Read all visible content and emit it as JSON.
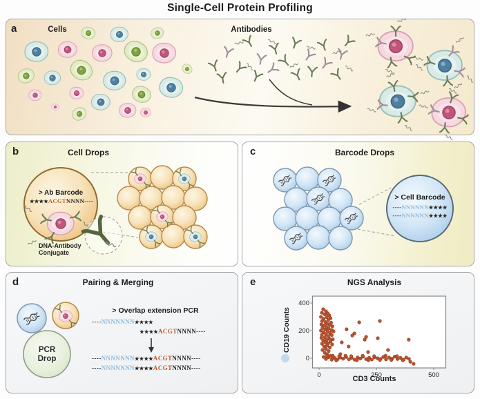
{
  "title": "Single-Cell Protein Profiling",
  "colors": {
    "seq_orange": "#c05a2a",
    "seq_blue": "#8fbcdd",
    "scatter_point": "#b9522e",
    "panel_border": "#a6a6a6",
    "orange_drop": "#f2cf96",
    "blue_drop": "#b8d4ec",
    "pcr_drop": "#dde9d3"
  },
  "icons": {
    "antibody-icon": "Y-shaped antibody glyph",
    "dna-squiggle-icon": "wavy DNA oligo tag",
    "dna-helix-icon": "double helix barcode",
    "droplet-icon": "microfluidic drop circle",
    "flow-arrow-icon": "right-pointing workflow arrow",
    "merge-arrow-icon": "downward merge arrow"
  },
  "panels": {
    "a": {
      "letter": "a",
      "cells_label": "Cells",
      "antibodies_label": "Antibodies"
    },
    "b": {
      "letter": "b",
      "title": "Cell Drops",
      "drop_header": "> Ab Barcode",
      "seq": [
        "★★★★",
        "ACGT",
        "NNNN",
        "----"
      ],
      "conjugate_label": [
        "DNA-Antibody",
        "Conjugate"
      ]
    },
    "c": {
      "letter": "c",
      "title": "Barcode Drops",
      "drop_header": "> Cell Barcode",
      "seq": [
        "----",
        "NNNNNN",
        "★★★★"
      ]
    },
    "d": {
      "letter": "d",
      "title": "Pairing & Merging",
      "pcr_drop": [
        "PCR",
        "Drop"
      ],
      "overlap_header": "> Overlap extension PCR",
      "seq_top": [
        "----",
        "NNNNNNN",
        "★★★★"
      ],
      "seq_mid": [
        "★★★★",
        "ACGT",
        "NNNN",
        "----"
      ],
      "seq_merged": [
        "----",
        "NNNNNNN",
        "★★★★",
        "ACGT",
        "NNNN",
        "----"
      ]
    },
    "e": {
      "letter": "e",
      "title": "NGS Analysis",
      "chart_data": {
        "type": "scatter",
        "xlabel": "CD3 Counts",
        "ylabel": "CD19 Counts",
        "xticks": [
          0,
          250,
          500
        ],
        "yticks": [
          0,
          200,
          400
        ],
        "xlim": [
          -30,
          545
        ],
        "ylim": [
          -70,
          450
        ],
        "legend": null,
        "grid": false,
        "points": [
          [
            18,
            355
          ],
          [
            30,
            340
          ],
          [
            12,
            330
          ],
          [
            38,
            325
          ],
          [
            25,
            318
          ],
          [
            45,
            310
          ],
          [
            8,
            300
          ],
          [
            33,
            298
          ],
          [
            50,
            290
          ],
          [
            20,
            285
          ],
          [
            40,
            278
          ],
          [
            13,
            270
          ],
          [
            28,
            262
          ],
          [
            52,
            258
          ],
          [
            36,
            250
          ],
          [
            10,
            245
          ],
          [
            46,
            240
          ],
          [
            22,
            238
          ],
          [
            58,
            232
          ],
          [
            32,
            225
          ],
          [
            15,
            220
          ],
          [
            42,
            215
          ],
          [
            27,
            208
          ],
          [
            55,
            205
          ],
          [
            8,
            200
          ],
          [
            38,
            195
          ],
          [
            63,
            195
          ],
          [
            20,
            188
          ],
          [
            48,
            182
          ],
          [
            30,
            175
          ],
          [
            12,
            170
          ],
          [
            55,
            168
          ],
          [
            40,
            160
          ],
          [
            25,
            152
          ],
          [
            10,
            148
          ],
          [
            45,
            142
          ],
          [
            60,
            138
          ],
          [
            33,
            132
          ],
          [
            18,
            128
          ],
          [
            50,
            122
          ],
          [
            28,
            115
          ],
          [
            40,
            108
          ],
          [
            13,
            105
          ],
          [
            57,
            100
          ],
          [
            35,
            92
          ],
          [
            22,
            85
          ],
          [
            47,
            78
          ],
          [
            30,
            68
          ],
          [
            15,
            60
          ],
          [
            42,
            52
          ],
          [
            25,
            40
          ],
          [
            35,
            28
          ],
          [
            50,
            18
          ],
          [
            20,
            10
          ],
          [
            60,
            5
          ],
          [
            30,
            -5
          ],
          [
            42,
            8
          ],
          [
            55,
            -10
          ],
          [
            68,
            2
          ],
          [
            80,
            -8
          ],
          [
            92,
            5
          ],
          [
            105,
            -3
          ],
          [
            118,
            10
          ],
          [
            130,
            -7
          ],
          [
            142,
            3
          ],
          [
            155,
            -10
          ],
          [
            168,
            6
          ],
          [
            180,
            -2
          ],
          [
            192,
            12
          ],
          [
            205,
            -6
          ],
          [
            218,
            4
          ],
          [
            230,
            -9
          ],
          [
            242,
            8
          ],
          [
            255,
            0
          ],
          [
            268,
            -5
          ],
          [
            280,
            10
          ],
          [
            292,
            -8
          ],
          [
            305,
            5
          ],
          [
            318,
            -3
          ],
          [
            330,
            12
          ],
          [
            342,
            -6
          ],
          [
            355,
            3
          ],
          [
            368,
            -10
          ],
          [
            380,
            6
          ],
          [
            392,
            -4
          ],
          [
            398,
            -25
          ],
          [
            412,
            -40
          ],
          [
            35,
            15
          ],
          [
            60,
            18
          ],
          [
            75,
            -15
          ],
          [
            88,
            15
          ],
          [
            115,
            18
          ],
          [
            140,
            15
          ],
          [
            165,
            -14
          ],
          [
            190,
            18
          ],
          [
            215,
            -14
          ],
          [
            240,
            15
          ],
          [
            265,
            -12
          ],
          [
            290,
            18
          ],
          [
            315,
            -12
          ],
          [
            340,
            15
          ],
          [
            365,
            -14
          ],
          [
            93,
            30
          ],
          [
            99,
            115
          ],
          [
            120,
            210
          ],
          [
            129,
            85
          ],
          [
            145,
            165
          ],
          [
            154,
            180
          ],
          [
            175,
            260
          ],
          [
            199,
            135
          ],
          [
            205,
            155
          ],
          [
            214,
            45
          ],
          [
            256,
            145
          ],
          [
            265,
            270
          ],
          [
            301,
            60
          ],
          [
            391,
            135
          ]
        ]
      }
    }
  }
}
